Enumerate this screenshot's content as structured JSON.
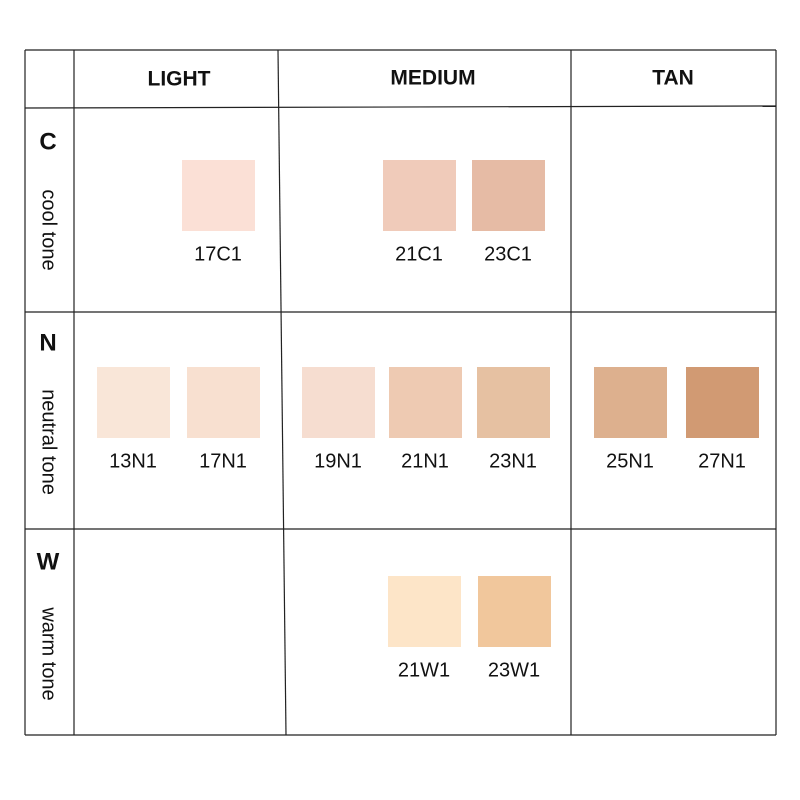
{
  "header": {
    "columns": [
      "LIGHT",
      "MEDIUM",
      "TAN"
    ]
  },
  "rows": [
    {
      "letter": "C",
      "label": "cool tone",
      "swatches": [
        {
          "name": "17C1",
          "color": "#fbe0d6"
        },
        {
          "name": "21C1",
          "color": "#f0cbba"
        },
        {
          "name": "23C1",
          "color": "#e6bba5"
        }
      ]
    },
    {
      "letter": "N",
      "label": "neutral tone",
      "swatches": [
        {
          "name": "13N1",
          "color": "#f9e6d8"
        },
        {
          "name": "17N1",
          "color": "#f8e0d0"
        },
        {
          "name": "19N1",
          "color": "#f6ddd0"
        },
        {
          "name": "21N1",
          "color": "#eecab2"
        },
        {
          "name": "23N1",
          "color": "#e6c1a2"
        },
        {
          "name": "25N1",
          "color": "#ddb08e"
        },
        {
          "name": "27N1",
          "color": "#d19a73"
        }
      ]
    },
    {
      "letter": "W",
      "label": "warm tone",
      "swatches": [
        {
          "name": "21W1",
          "color": "#fde5c8"
        },
        {
          "name": "23W1",
          "color": "#f1c79c"
        }
      ]
    }
  ]
}
